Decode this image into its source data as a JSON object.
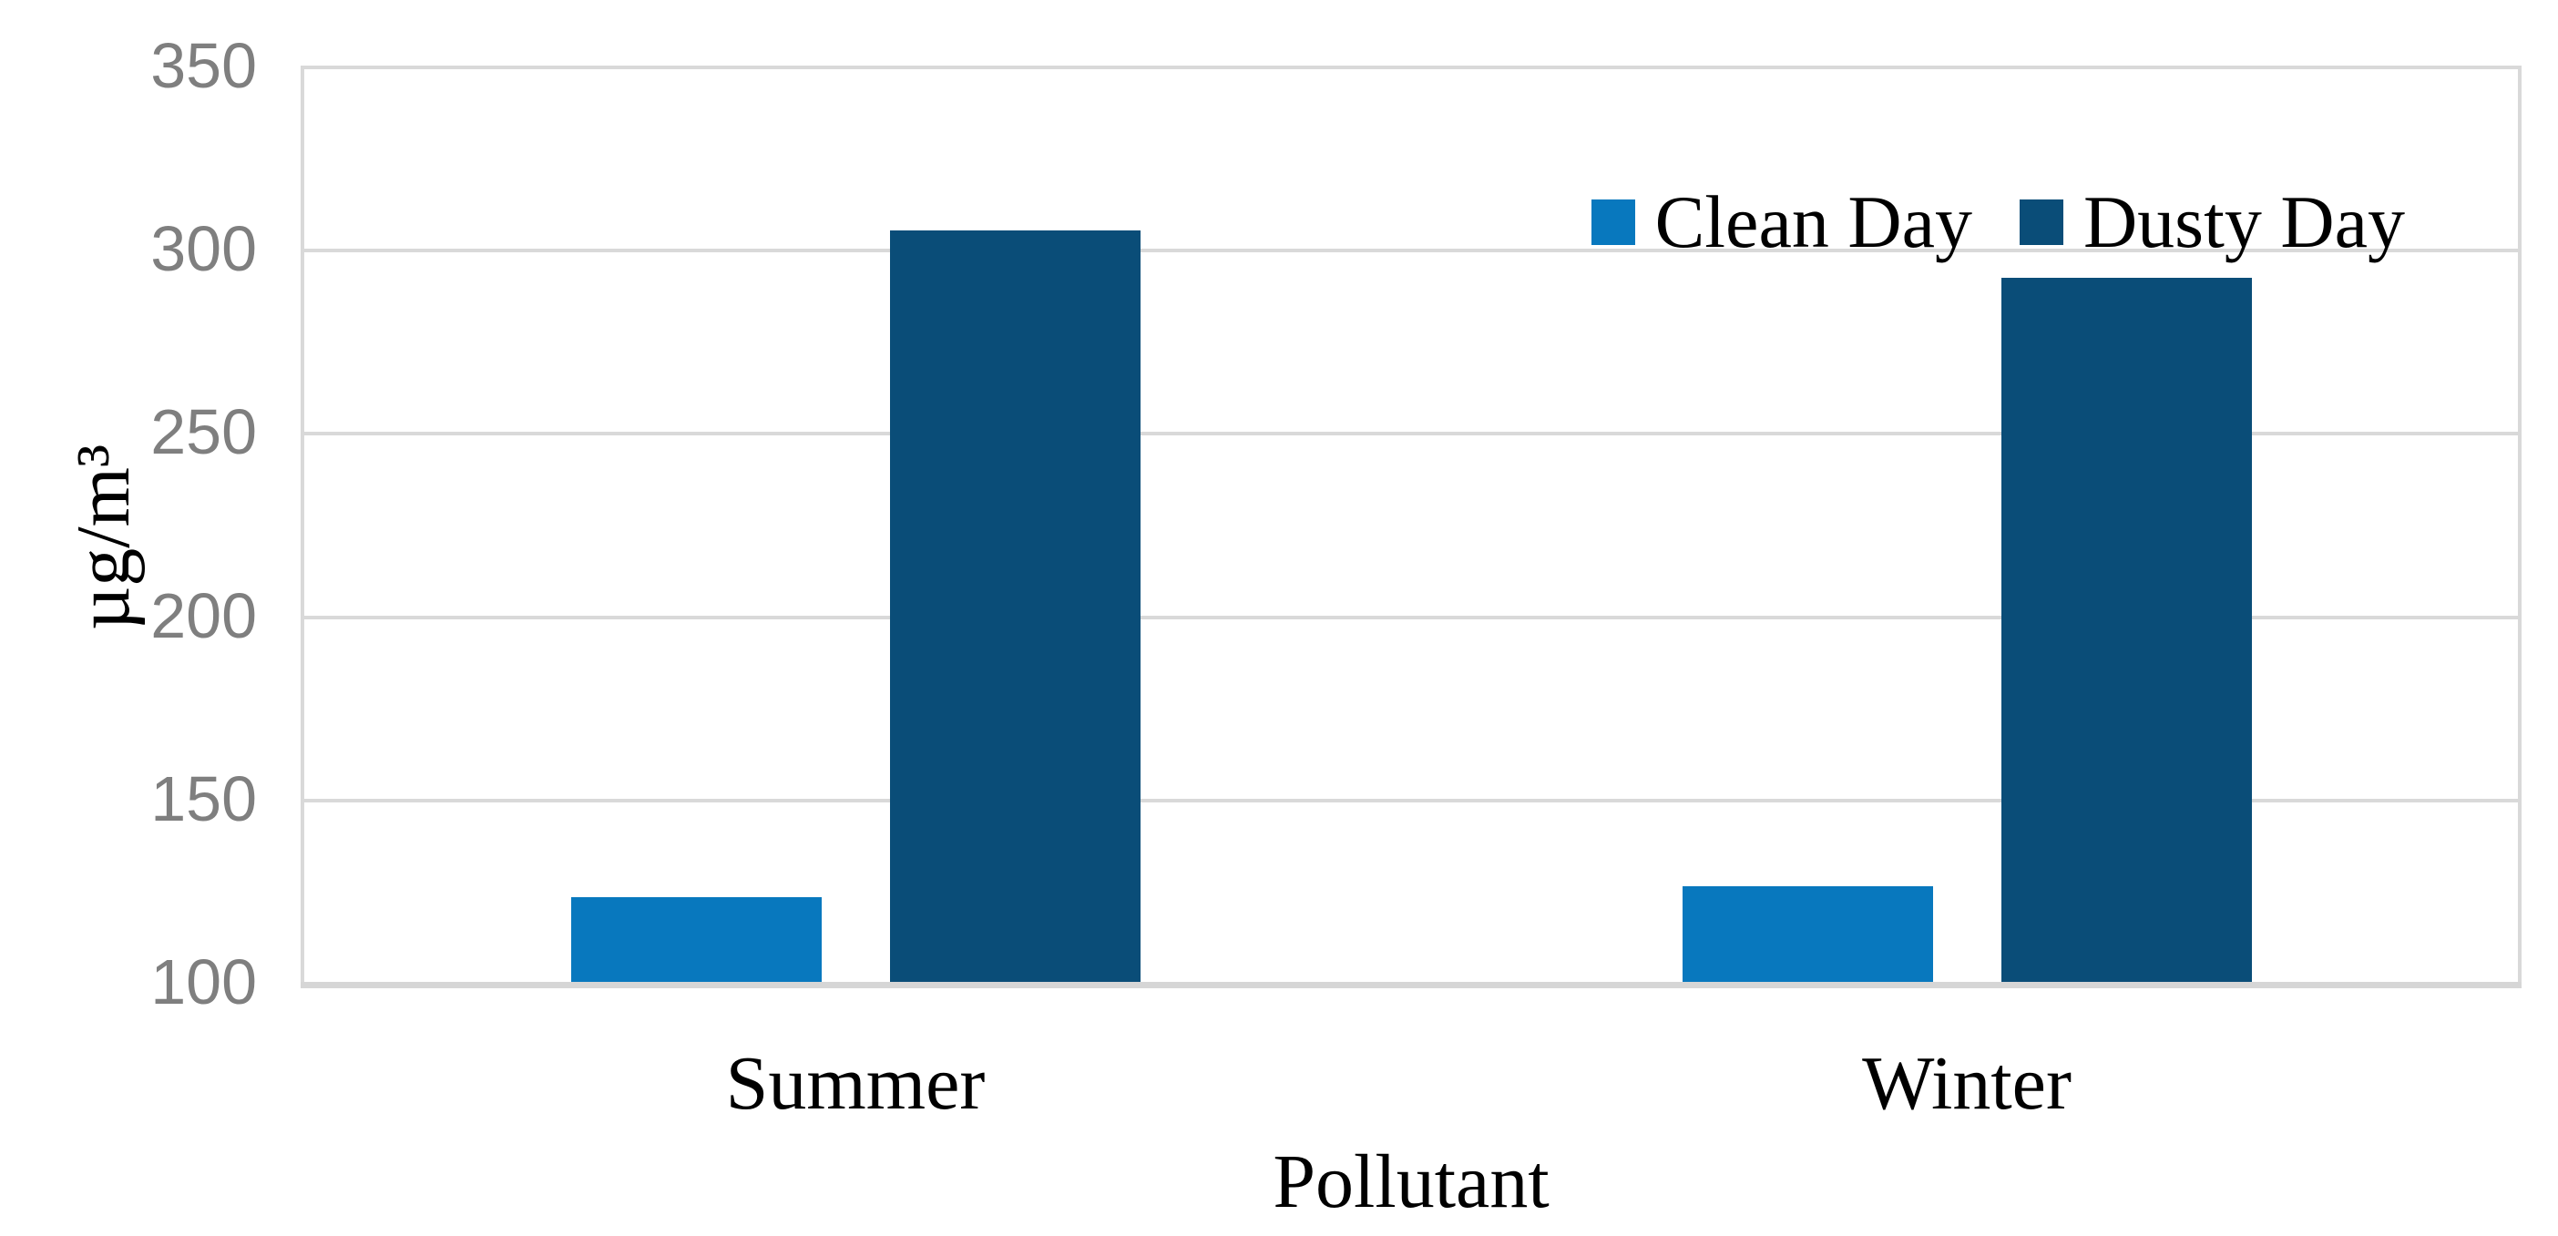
{
  "figure": {
    "type_hint": "grouped-bar-chart-figure"
  },
  "chart_data": {
    "type": "bar",
    "title": "",
    "categories": [
      "Summer",
      "Winter"
    ],
    "series": [
      {
        "name": "Clean Day",
        "color": "#0878BE",
        "values": [
          123,
          126
        ]
      },
      {
        "name": "Dusty Day",
        "color": "#0A4D78",
        "values": [
          305,
          292
        ]
      }
    ],
    "xlabel": "Pollutant",
    "ylabel": "µg/m³",
    "ylim": [
      100,
      350
    ],
    "y_ticks": [
      350,
      300,
      250,
      200,
      150,
      100
    ],
    "grid": "horizontal",
    "legend_position": "top-right",
    "colors": {
      "gridline": "#d9d9d9",
      "axis_line": "#d6d6d6",
      "tick_label": "#7f7f7f",
      "text": "#000000",
      "background": "#ffffff"
    }
  }
}
